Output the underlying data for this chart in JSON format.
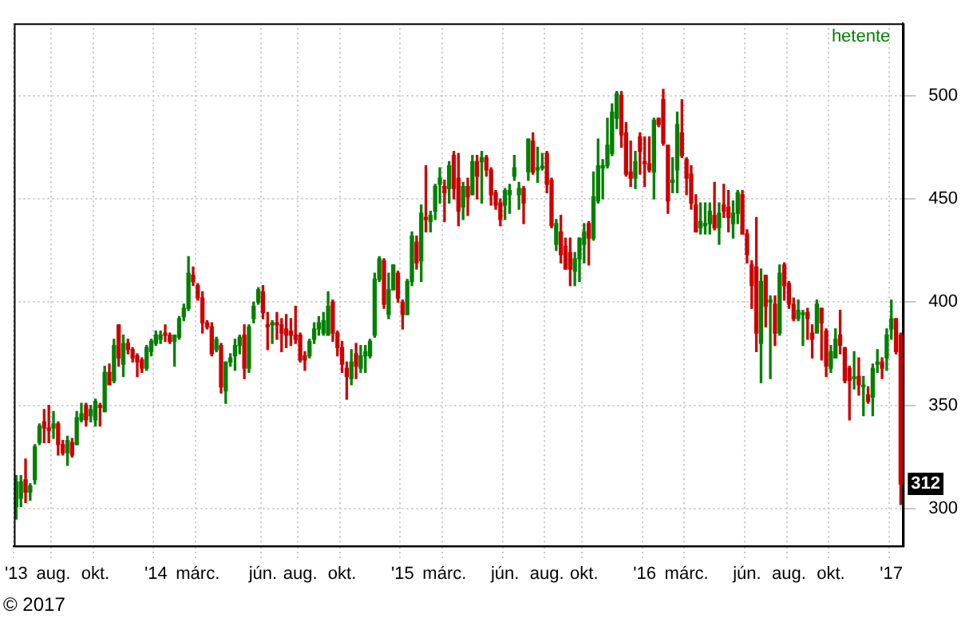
{
  "chart_data": {
    "type": "candlestick",
    "categories": [
      "'13",
      null,
      null,
      null,
      null,
      null,
      null,
      null,
      "aug.",
      null,
      null,
      null,
      null,
      null,
      null,
      null,
      null,
      "okt.",
      null,
      null,
      null,
      null,
      null,
      null,
      null,
      null,
      null,
      null,
      null,
      null,
      "'14",
      null,
      null,
      null,
      null,
      null,
      null,
      null,
      null,
      "márc.",
      null,
      null,
      null,
      null,
      null,
      null,
      null,
      null,
      null,
      null,
      null,
      null,
      null,
      "jún.",
      null,
      null,
      null,
      null,
      null,
      null,
      null,
      "aug.",
      null,
      null,
      null,
      null,
      null,
      null,
      null,
      null,
      "okt.",
      null,
      null,
      null,
      null,
      null,
      null,
      null,
      null,
      null,
      null,
      null,
      null,
      "'15",
      null,
      null,
      null,
      null,
      null,
      null,
      null,
      null,
      "márc.",
      null,
      null,
      null,
      null,
      null,
      null,
      null,
      null,
      null,
      null,
      null,
      null,
      "jún.",
      null,
      null,
      null,
      null,
      null,
      null,
      null,
      null,
      "aug.",
      null,
      null,
      null,
      null,
      null,
      null,
      null,
      "okt.",
      null,
      null,
      null,
      null,
      null,
      null,
      null,
      null,
      null,
      null,
      null,
      null,
      "'16",
      null,
      null,
      null,
      null,
      null,
      null,
      null,
      null,
      "márc.",
      null,
      null,
      null,
      null,
      null,
      null,
      null,
      null,
      null,
      null,
      null,
      null,
      "jún.",
      null,
      null,
      null,
      null,
      null,
      null,
      null,
      null,
      "aug.",
      null,
      null,
      null,
      null,
      null,
      null,
      null,
      null,
      "okt.",
      null,
      null,
      null,
      null,
      null,
      null,
      null,
      null,
      null,
      null,
      null,
      null,
      "'17",
      null,
      null
    ],
    "ohlc": [
      [
        301,
        316,
        295,
        313
      ],
      [
        305,
        316,
        301,
        313
      ],
      [
        314,
        324,
        303,
        308
      ],
      [
        308,
        312,
        304,
        311
      ],
      [
        314,
        331,
        312,
        330
      ],
      [
        332,
        341,
        331,
        340
      ],
      [
        342,
        348,
        332,
        339
      ],
      [
        339,
        350,
        332,
        338
      ],
      [
        339,
        347,
        334,
        341
      ],
      [
        341,
        342,
        326,
        331
      ],
      [
        331,
        333,
        326,
        327
      ],
      [
        327,
        335,
        321,
        333
      ],
      [
        332,
        334,
        325,
        326
      ],
      [
        331,
        347,
        331,
        344
      ],
      [
        343,
        351,
        342,
        346
      ],
      [
        350,
        351,
        340,
        343
      ],
      [
        345,
        350,
        342,
        348
      ],
      [
        343,
        353,
        340,
        352
      ],
      [
        350,
        351,
        340,
        349
      ],
      [
        347,
        369,
        347,
        366
      ],
      [
        366,
        370,
        360,
        360
      ],
      [
        362,
        382,
        361,
        379
      ],
      [
        389,
        389,
        369,
        373
      ],
      [
        370,
        384,
        364,
        380
      ],
      [
        380,
        382,
        375,
        377
      ],
      [
        377,
        378,
        371,
        373
      ],
      [
        374,
        375,
        364,
        371
      ],
      [
        372,
        373,
        366,
        368
      ],
      [
        368,
        379,
        367,
        378
      ],
      [
        376,
        382,
        374,
        381
      ],
      [
        380,
        386,
        379,
        384
      ],
      [
        382,
        386,
        380,
        384
      ],
      [
        385,
        389,
        381,
        384
      ],
      [
        384,
        385,
        380,
        381
      ],
      [
        381,
        384,
        369,
        384
      ],
      [
        383,
        393,
        382,
        392
      ],
      [
        393,
        399,
        391,
        397
      ],
      [
        397,
        422,
        396,
        414
      ],
      [
        413,
        417,
        408,
        410
      ],
      [
        408,
        409,
        401,
        402
      ],
      [
        402,
        405,
        385,
        390
      ],
      [
        390,
        391,
        387,
        388
      ],
      [
        388,
        390,
        374,
        375
      ],
      [
        377,
        383,
        376,
        382
      ],
      [
        379,
        380,
        356,
        359
      ],
      [
        357,
        371,
        351,
        371
      ],
      [
        371,
        375,
        369,
        373
      ],
      [
        374,
        382,
        367,
        379
      ],
      [
        379,
        384,
        375,
        383
      ],
      [
        384,
        389,
        363,
        368
      ],
      [
        368,
        389,
        366,
        388
      ],
      [
        392,
        400,
        390,
        398
      ],
      [
        400,
        407,
        399,
        406
      ],
      [
        405,
        408,
        392,
        395
      ],
      [
        389,
        395,
        377,
        388
      ],
      [
        389,
        391,
        380,
        390
      ],
      [
        390,
        395,
        382,
        389
      ],
      [
        389,
        392,
        376,
        385
      ],
      [
        387,
        394,
        378,
        384
      ],
      [
        386,
        392,
        379,
        384
      ],
      [
        384,
        398,
        380,
        382
      ],
      [
        384,
        385,
        371,
        372
      ],
      [
        374,
        376,
        367,
        372
      ],
      [
        374,
        382,
        373,
        381
      ],
      [
        382,
        390,
        380,
        387
      ],
      [
        387,
        393,
        384,
        390
      ],
      [
        385,
        395,
        384,
        391
      ],
      [
        384,
        405,
        384,
        398
      ],
      [
        400,
        401,
        381,
        385
      ],
      [
        385,
        386,
        374,
        378
      ],
      [
        378,
        381,
        366,
        370
      ],
      [
        368,
        371,
        353,
        364
      ],
      [
        363,
        377,
        360,
        371
      ],
      [
        375,
        380,
        363,
        369
      ],
      [
        368,
        379,
        366,
        374
      ],
      [
        374,
        379,
        366,
        376
      ],
      [
        374,
        382,
        373,
        381
      ],
      [
        384,
        414,
        383,
        411
      ],
      [
        411,
        422,
        410,
        421
      ],
      [
        420,
        421,
        397,
        399
      ],
      [
        394,
        414,
        392,
        406
      ],
      [
        406,
        418,
        406,
        418
      ],
      [
        414,
        415,
        400,
        402
      ],
      [
        400,
        401,
        387,
        394
      ],
      [
        394,
        411,
        394,
        410
      ],
      [
        410,
        434,
        408,
        432
      ],
      [
        429,
        432,
        416,
        419
      ],
      [
        420,
        447,
        410,
        443
      ],
      [
        441,
        466,
        434,
        440
      ],
      [
        439,
        444,
        434,
        442
      ],
      [
        444,
        457,
        440,
        456
      ],
      [
        457,
        465,
        448,
        460
      ],
      [
        456,
        459,
        439,
        453
      ],
      [
        455,
        468,
        448,
        466
      ],
      [
        471,
        473,
        450,
        455
      ],
      [
        460,
        472,
        437,
        444
      ],
      [
        446,
        458,
        440,
        456
      ],
      [
        456,
        460,
        442,
        451
      ],
      [
        452,
        471,
        452,
        468
      ],
      [
        468,
        471,
        450,
        461
      ],
      [
        468,
        473,
        448,
        470
      ],
      [
        470,
        471,
        461,
        464
      ],
      [
        464,
        465,
        447,
        452
      ],
      [
        453,
        454,
        445,
        447
      ],
      [
        448,
        450,
        437,
        440
      ],
      [
        447,
        455,
        440,
        454
      ],
      [
        452,
        457,
        443,
        454
      ],
      [
        461,
        471,
        459,
        465
      ],
      [
        452,
        458,
        445,
        455
      ],
      [
        455,
        456,
        438,
        448
      ],
      [
        463,
        479,
        459,
        479
      ],
      [
        478,
        482,
        462,
        463
      ],
      [
        464,
        475,
        458,
        465
      ],
      [
        465,
        472,
        464,
        465
      ],
      [
        472,
        473,
        453,
        457
      ],
      [
        459,
        460,
        436,
        437
      ],
      [
        428,
        440,
        425,
        438
      ],
      [
        434,
        442,
        419,
        423
      ],
      [
        427,
        431,
        416,
        416
      ],
      [
        424,
        431,
        408,
        416
      ],
      [
        415,
        424,
        408,
        421
      ],
      [
        421,
        431,
        410,
        431
      ],
      [
        428,
        438,
        419,
        434
      ],
      [
        438,
        439,
        418,
        431
      ],
      [
        431,
        463,
        430,
        451
      ],
      [
        449,
        479,
        448,
        466
      ],
      [
        465,
        469,
        450,
        466
      ],
      [
        466,
        489,
        465,
        476
      ],
      [
        472,
        496,
        471,
        492
      ],
      [
        489,
        502,
        484,
        501
      ],
      [
        500,
        502,
        475,
        481
      ],
      [
        482,
        487,
        461,
        462
      ],
      [
        463,
        478,
        456,
        460
      ],
      [
        460,
        473,
        455,
        468
      ],
      [
        480,
        482,
        462,
        473
      ],
      [
        468,
        480,
        456,
        467
      ],
      [
        467,
        480,
        463,
        464
      ],
      [
        463,
        489,
        450,
        488
      ],
      [
        489,
        489,
        485,
        486
      ],
      [
        498,
        503,
        476,
        477
      ],
      [
        476,
        476,
        443,
        449
      ],
      [
        458,
        470,
        453,
        459
      ],
      [
        464,
        492,
        453,
        486
      ],
      [
        482,
        498,
        470,
        471
      ],
      [
        469,
        470,
        452,
        460
      ],
      [
        462,
        466,
        445,
        448
      ],
      [
        447,
        452,
        434,
        434
      ],
      [
        436,
        448,
        433,
        439
      ],
      [
        437,
        448,
        433,
        438
      ],
      [
        438,
        448,
        433,
        444
      ],
      [
        442,
        458,
        435,
        436
      ],
      [
        436,
        448,
        428,
        443
      ],
      [
        447,
        457,
        441,
        444
      ],
      [
        446,
        454,
        434,
        441
      ],
      [
        438,
        449,
        431,
        443
      ],
      [
        443,
        454,
        438,
        453
      ],
      [
        452,
        454,
        433,
        433
      ],
      [
        433,
        435,
        419,
        423
      ],
      [
        418,
        420,
        397,
        408
      ],
      [
        417,
        441,
        376,
        385
      ],
      [
        380,
        416,
        361,
        410
      ],
      [
        413,
        413,
        388,
        398
      ],
      [
        400,
        403,
        363,
        401
      ],
      [
        399,
        403,
        379,
        385
      ],
      [
        385,
        418,
        384,
        414
      ],
      [
        418,
        419,
        401,
        408
      ],
      [
        409,
        410,
        397,
        399
      ],
      [
        399,
        402,
        391,
        392
      ],
      [
        392,
        401,
        391,
        396
      ],
      [
        394,
        396,
        379,
        394
      ],
      [
        395,
        397,
        382,
        392
      ],
      [
        385,
        389,
        373,
        382
      ],
      [
        385,
        401,
        385,
        399
      ],
      [
        397,
        397,
        372,
        390
      ],
      [
        386,
        387,
        364,
        369
      ],
      [
        368,
        379,
        366,
        376
      ],
      [
        373,
        387,
        373,
        382
      ],
      [
        384,
        396,
        375,
        379
      ],
      [
        378,
        378,
        361,
        362
      ],
      [
        368,
        369,
        343,
        362
      ],
      [
        363,
        376,
        358,
        363
      ],
      [
        364,
        373,
        355,
        360
      ],
      [
        359,
        364,
        345,
        359
      ],
      [
        355,
        359,
        351,
        352
      ],
      [
        354,
        370,
        345,
        368
      ],
      [
        370,
        377,
        366,
        371
      ],
      [
        371,
        373,
        363,
        368
      ],
      [
        373,
        387,
        367,
        384
      ],
      [
        387,
        401,
        382,
        392
      ],
      [
        392,
        392,
        375,
        376
      ],
      [
        384,
        385,
        302,
        312
      ]
    ],
    "colors": [
      "#008000",
      "#008000",
      "#cc0000",
      "#008000",
      "#008000",
      "#008000",
      "#cc0000",
      "#cc0000",
      "#008000",
      "#cc0000",
      "#cc0000",
      "#008000",
      "#cc0000",
      "#008000",
      "#008000",
      "#cc0000",
      "#008000",
      "#008000",
      "#cc0000",
      "#008000",
      "#cc0000",
      "#008000",
      "#cc0000",
      "#008000",
      "#cc0000",
      "#cc0000",
      "#cc0000",
      "#cc0000",
      "#008000",
      "#008000",
      "#008000",
      "#008000",
      "#cc0000",
      "#cc0000",
      "#008000",
      "#008000",
      "#008000",
      "#008000",
      "#cc0000",
      "#cc0000",
      "#cc0000",
      "#cc0000",
      "#cc0000",
      "#008000",
      "#cc0000",
      "#008000",
      "#008000",
      "#008000",
      "#008000",
      "#cc0000",
      "#008000",
      "#008000",
      "#008000",
      "#cc0000",
      "#cc0000",
      "#008000",
      "#cc0000",
      "#cc0000",
      "#cc0000",
      "#cc0000",
      "#cc0000",
      "#cc0000",
      "#cc0000",
      "#008000",
      "#008000",
      "#008000",
      "#008000",
      "#008000",
      "#cc0000",
      "#cc0000",
      "#cc0000",
      "#cc0000",
      "#008000",
      "#cc0000",
      "#008000",
      "#008000",
      "#008000",
      "#008000",
      "#008000",
      "#cc0000",
      "#008000",
      "#008000",
      "#cc0000",
      "#cc0000",
      "#008000",
      "#008000",
      "#cc0000",
      "#008000",
      "#cc0000",
      "#008000",
      "#008000",
      "#008000",
      "#cc0000",
      "#008000",
      "#cc0000",
      "#cc0000",
      "#008000",
      "#cc0000",
      "#008000",
      "#cc0000",
      "#008000",
      "#cc0000",
      "#cc0000",
      "#cc0000",
      "#cc0000",
      "#008000",
      "#008000",
      "#008000",
      "#008000",
      "#cc0000",
      "#008000",
      "#cc0000",
      "#008000",
      "#008000",
      "#cc0000",
      "#cc0000",
      "#008000",
      "#cc0000",
      "#cc0000",
      "#cc0000",
      "#008000",
      "#008000",
      "#008000",
      "#cc0000",
      "#008000",
      "#008000",
      "#008000",
      "#008000",
      "#008000",
      "#008000",
      "#cc0000",
      "#cc0000",
      "#cc0000",
      "#008000",
      "#cc0000",
      "#cc0000",
      "#cc0000",
      "#008000",
      "#cc0000",
      "#cc0000",
      "#cc0000",
      "#008000",
      "#008000",
      "#cc0000",
      "#cc0000",
      "#cc0000",
      "#cc0000",
      "#008000",
      "#008000",
      "#008000",
      "#cc0000",
      "#008000",
      "#cc0000",
      "#cc0000",
      "#008000",
      "#008000",
      "#cc0000",
      "#cc0000",
      "#cc0000",
      "#cc0000",
      "#008000",
      "#cc0000",
      "#008000",
      "#cc0000",
      "#008000",
      "#cc0000",
      "#cc0000",
      "#cc0000",
      "#008000",
      "#008000",
      "#cc0000",
      "#cc0000",
      "#008000",
      "#cc0000",
      "#cc0000",
      "#008000",
      "#008000",
      "#cc0000",
      "#cc0000",
      "#cc0000",
      "#008000",
      "#cc0000",
      "#008000",
      "#cc0000",
      "#008000",
      "#008000",
      "#cc0000",
      "#008000",
      "#008000",
      "#cc0000",
      "#cc0000"
    ],
    "ylim": [
      282,
      535
    ],
    "yticks": [
      300,
      350,
      400,
      450,
      500
    ],
    "grid": true,
    "legend": false,
    "annotations": [
      "hetente",
      "312",
      "© 2017"
    ]
  }
}
